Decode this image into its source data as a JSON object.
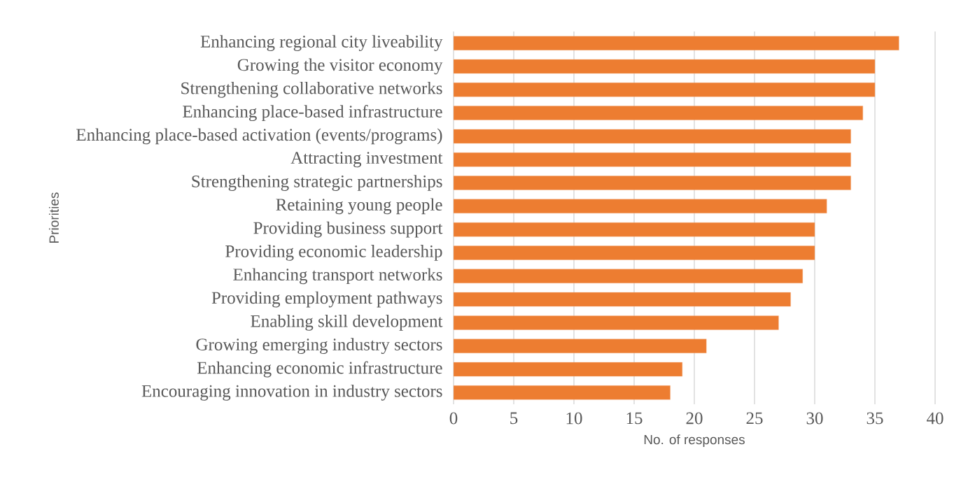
{
  "chart_data": {
    "type": "bar",
    "orientation": "horizontal",
    "xlabel": "No. of responses",
    "ylabel": "Priorities",
    "categories": [
      "Enhancing regional city liveability",
      "Growing the visitor economy",
      "Strengthening collaborative networks",
      "Enhancing place-based infrastructure",
      "Enhancing place-based activation (events/programs)",
      "Attracting investment",
      "Strengthening strategic partnerships",
      "Retaining young people",
      "Providing business support",
      "Providing economic leadership",
      "Enhancing transport networks",
      "Providing employment pathways",
      "Enabling skill development",
      "Growing emerging industry sectors",
      "Enhancing economic infrastructure",
      "Encouraging innovation in industry sectors"
    ],
    "values": [
      37,
      35,
      35,
      34,
      33,
      33,
      33,
      31,
      30,
      30,
      29,
      28,
      27,
      21,
      19,
      18
    ],
    "color": "#ed7d31",
    "xlim": [
      0,
      40
    ],
    "xticks": [
      0,
      5,
      10,
      15,
      20,
      25,
      30,
      35,
      40
    ],
    "grid": "x"
  }
}
